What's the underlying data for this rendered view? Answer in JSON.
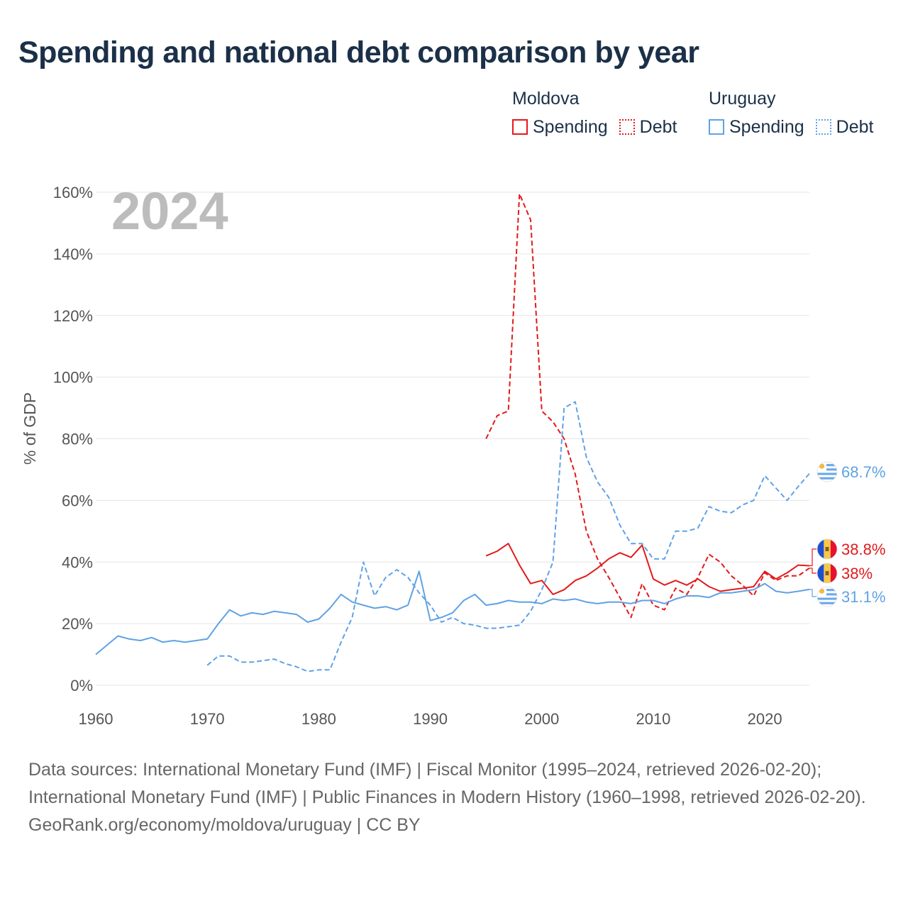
{
  "title": "Spending and national debt comparison by year",
  "year_watermark": "2024",
  "legend": {
    "groups": [
      {
        "name": "Moldova",
        "items": [
          {
            "label": "Spending",
            "style": "solid",
            "color": "#e31a1c"
          },
          {
            "label": "Debt",
            "style": "dotted",
            "color": "#e31a1c"
          }
        ]
      },
      {
        "name": "Uruguay",
        "items": [
          {
            "label": "Spending",
            "style": "solid",
            "color": "#5fa2e5"
          },
          {
            "label": "Debt",
            "style": "dotted",
            "color": "#5fa2e5"
          }
        ]
      }
    ]
  },
  "end_labels": [
    {
      "series": "uy_debt",
      "text": "68.7%",
      "flag": "uruguay-flag",
      "color": "#5fa2e5"
    },
    {
      "series": "md_spending",
      "text": "38.8%",
      "flag": "moldova-flag",
      "color": "#e31a1c"
    },
    {
      "series": "md_debt",
      "text": "38%",
      "flag": "moldova-flag",
      "color": "#e31a1c"
    },
    {
      "series": "uy_spending",
      "text": "31.1%",
      "flag": "uruguay-flag",
      "color": "#5fa2e5"
    }
  ],
  "chart_data": {
    "type": "line",
    "title": "Spending and national debt comparison by year",
    "ylabel": "% of GDP",
    "xlabel": "",
    "xlim": [
      1960,
      2024
    ],
    "ylim": [
      0,
      160
    ],
    "x_ticks": [
      1960,
      1970,
      1980,
      1990,
      2000,
      2010,
      2020
    ],
    "y_ticks": [
      0,
      20,
      40,
      60,
      80,
      100,
      120,
      140,
      160
    ],
    "y_tick_labels": [
      "0%",
      "20%",
      "40%",
      "60%",
      "80%",
      "100%",
      "120%",
      "140%",
      "160%"
    ],
    "grid": true,
    "series": [
      {
        "id": "md_spending",
        "name": "Moldova Spending",
        "color": "#e31a1c",
        "dash": "solid",
        "x": [
          1995,
          1996,
          1997,
          1998,
          1999,
          2000,
          2001,
          2002,
          2003,
          2004,
          2005,
          2006,
          2007,
          2008,
          2009,
          2010,
          2011,
          2012,
          2013,
          2014,
          2015,
          2016,
          2017,
          2018,
          2019,
          2020,
          2021,
          2022,
          2023,
          2024
        ],
        "y": [
          42,
          43.5,
          46,
          39,
          33,
          34,
          29.5,
          31,
          34,
          35.5,
          38,
          41,
          43,
          41.5,
          45.5,
          34.5,
          32.5,
          34,
          32.5,
          34.5,
          32,
          30.5,
          31,
          31.5,
          32,
          37,
          34.5,
          36.5,
          39,
          38.8
        ]
      },
      {
        "id": "md_debt",
        "name": "Moldova Debt",
        "color": "#e31a1c",
        "dash": "dashed",
        "x": [
          1995,
          1996,
          1997,
          1998,
          1999,
          2000,
          2001,
          2002,
          2003,
          2004,
          2005,
          2006,
          2007,
          2008,
          2009,
          2010,
          2011,
          2012,
          2013,
          2014,
          2015,
          2016,
          2017,
          2018,
          2019,
          2020,
          2021,
          2022,
          2023,
          2024
        ],
        "y": [
          80,
          87.5,
          89,
          159.5,
          151,
          89,
          85.5,
          80,
          68.5,
          50,
          41,
          35,
          28.5,
          22,
          33,
          26,
          24.5,
          31.5,
          29.5,
          35,
          42.5,
          40,
          35.5,
          32.5,
          29,
          36.5,
          34,
          35.5,
          35.5,
          38
        ]
      },
      {
        "id": "uy_spending",
        "name": "Uruguay Spending",
        "color": "#5fa2e5",
        "dash": "solid",
        "x": [
          1960,
          1961,
          1962,
          1963,
          1964,
          1965,
          1966,
          1967,
          1968,
          1969,
          1970,
          1971,
          1972,
          1973,
          1974,
          1975,
          1976,
          1977,
          1978,
          1979,
          1980,
          1981,
          1982,
          1983,
          1984,
          1985,
          1986,
          1987,
          1988,
          1989,
          1990,
          1991,
          1992,
          1993,
          1994,
          1995,
          1996,
          1997,
          1998,
          1999,
          2000,
          2001,
          2002,
          2003,
          2004,
          2005,
          2006,
          2007,
          2008,
          2009,
          2010,
          2011,
          2012,
          2013,
          2014,
          2015,
          2016,
          2017,
          2018,
          2019,
          2020,
          2021,
          2022,
          2023,
          2024
        ],
        "y": [
          10,
          13,
          16,
          15,
          14.5,
          15.5,
          14,
          14.5,
          14,
          14.5,
          15,
          20,
          24.5,
          22.5,
          23.5,
          23,
          24,
          23.5,
          23,
          20.5,
          21.5,
          25,
          29.5,
          27,
          26,
          25,
          25.5,
          24.5,
          26,
          37,
          21,
          22,
          23.5,
          27.5,
          29.5,
          26,
          26.5,
          27.5,
          27,
          27,
          26.5,
          28,
          27.5,
          28,
          27,
          26.5,
          27,
          27,
          26.5,
          27.5,
          27.5,
          26.5,
          28,
          29,
          29,
          28.5,
          30,
          30,
          30.5,
          31,
          33,
          30.5,
          30,
          30.5,
          31.1
        ]
      },
      {
        "id": "uy_debt",
        "name": "Uruguay Debt",
        "color": "#5fa2e5",
        "dash": "dashed",
        "x": [
          1970,
          1971,
          1972,
          1973,
          1974,
          1975,
          1976,
          1977,
          1978,
          1979,
          1980,
          1981,
          1982,
          1983,
          1984,
          1985,
          1986,
          1987,
          1988,
          1989,
          1990,
          1991,
          1992,
          1993,
          1994,
          1995,
          1996,
          1997,
          1998,
          1999,
          2000,
          2001,
          2002,
          2003,
          2004,
          2005,
          2006,
          2007,
          2008,
          2009,
          2010,
          2011,
          2012,
          2013,
          2014,
          2015,
          2016,
          2017,
          2018,
          2019,
          2020,
          2021,
          2022,
          2023,
          2024
        ],
        "y": [
          6.5,
          9.5,
          9.5,
          7.5,
          7.5,
          8,
          8.5,
          7,
          6,
          4.5,
          5,
          5,
          14,
          22,
          40,
          29,
          35,
          37.5,
          35,
          30,
          26,
          20.5,
          22,
          20,
          19.5,
          18.5,
          18.5,
          19,
          19.5,
          24,
          31,
          40,
          90,
          92,
          74,
          66,
          61,
          52,
          46,
          46,
          41,
          41,
          50,
          50,
          51,
          58,
          56.5,
          56,
          58.5,
          60,
          68,
          64,
          60,
          64.5,
          68.7
        ]
      }
    ]
  }
}
